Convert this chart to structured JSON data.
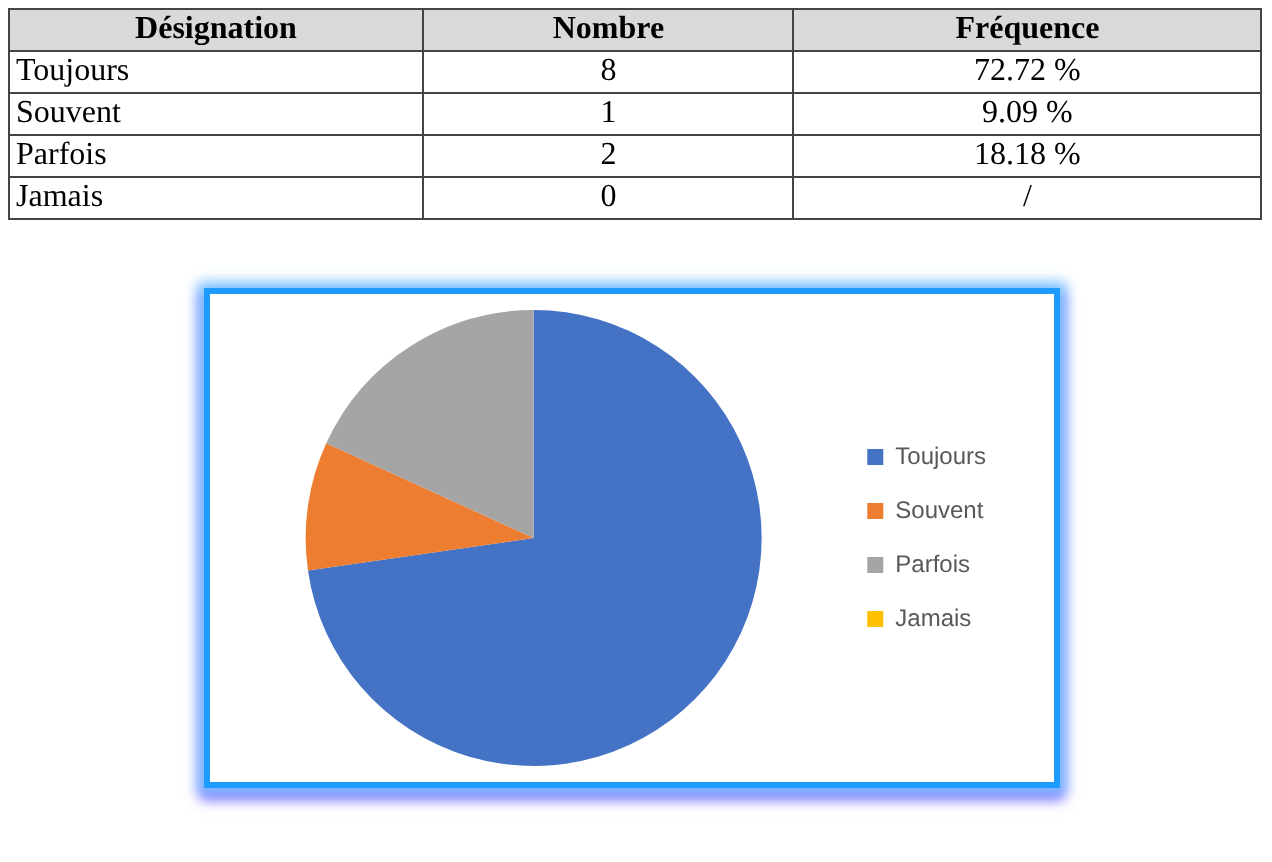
{
  "chart_data": [
    {
      "type": "other",
      "annotations": [
        "Désignation",
        "Nombre",
        "Fréquence",
        "Toujours",
        "8",
        "72.72 %",
        "Souvent",
        "1",
        "9.09 %",
        "Parfois",
        "2",
        "18.18 %",
        "Jamais",
        "0",
        "/"
      ]
    },
    {
      "type": "pie",
      "categories": [
        "Toujours",
        "Souvent",
        "Parfois",
        "Jamais"
      ],
      "values": [
        72.72,
        9.09,
        18.18,
        0
      ],
      "colors": [
        "#4472c4",
        "#ed7d31",
        "#a5a5a5",
        "#ffc000"
      ],
      "legend": "right"
    }
  ]
}
